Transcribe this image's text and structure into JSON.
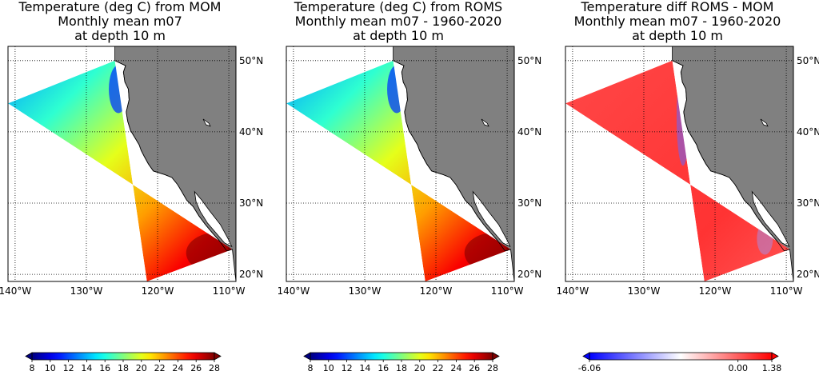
{
  "chart_data": [
    {
      "type": "heatmap",
      "title_lines": [
        "Temperature (deg C) from MOM",
        "Monthly mean m07",
        "at depth 10 m"
      ],
      "lon_ticks": [
        "140°W",
        "130°W",
        "120°W",
        "110°W"
      ],
      "lat_ticks": [
        "50°N",
        "40°N",
        "30°N",
        "20°N"
      ],
      "colorbar": {
        "min": 8,
        "max": 28,
        "tick_labels": [
          "8",
          "10",
          "12",
          "14",
          "16",
          "18",
          "20",
          "22",
          "24",
          "26",
          "28"
        ],
        "colormap": "jet",
        "extend": "both"
      },
      "field_range": [
        8,
        28
      ]
    },
    {
      "type": "heatmap",
      "title_lines": [
        "Temperature (deg C) from ROMS",
        "Monthly mean m07 - 1960-2020",
        "at depth 10 m"
      ],
      "lon_ticks": [
        "140°W",
        "130°W",
        "120°W",
        "110°W"
      ],
      "lat_ticks": [
        "50°N",
        "40°N",
        "30°N",
        "20°N"
      ],
      "colorbar": {
        "min": 8,
        "max": 28,
        "tick_labels": [
          "8",
          "10",
          "12",
          "14",
          "16",
          "18",
          "20",
          "22",
          "24",
          "26",
          "28"
        ],
        "colormap": "jet",
        "extend": "both"
      },
      "field_range": [
        8,
        28
      ]
    },
    {
      "type": "heatmap",
      "title_lines": [
        "Temperature diff ROMS - MOM",
        "Monthly mean m07 - 1960-2020",
        "at depth 10 m"
      ],
      "lon_ticks": [
        "140°W",
        "130°W",
        "120°W",
        "110°W"
      ],
      "lat_ticks": [
        "50°N",
        "40°N",
        "30°N",
        "20°N"
      ],
      "colorbar": {
        "min": -6.06,
        "max": 1.38,
        "tick_labels": [
          "-6.06",
          "0.00",
          "1.38"
        ],
        "colormap": "bwr",
        "extend": "both"
      },
      "field_range": [
        -6.06,
        1.38
      ]
    }
  ],
  "colors": {
    "land": "#808080",
    "background": "#ffffff"
  }
}
